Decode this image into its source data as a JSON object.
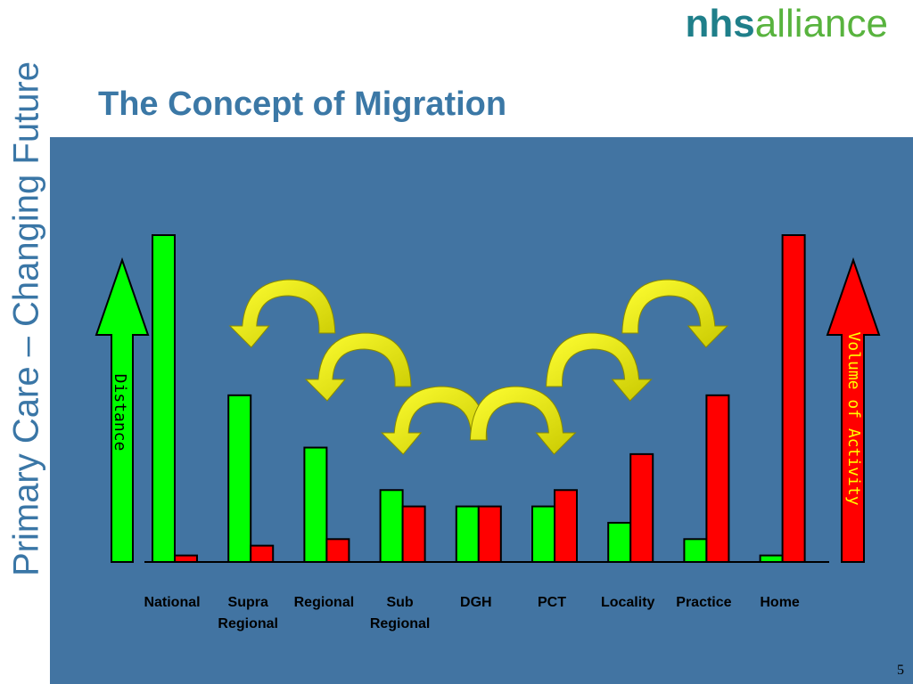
{
  "slide": {
    "title": "The Concept of Migration",
    "side_text": "Primary Care – Changing Future",
    "logo_nhs": "nhs",
    "logo_alliance": "alliance",
    "page_number": "5",
    "colors": {
      "panel": "#4274a2",
      "green": "#00ff00",
      "red": "#ff0000",
      "yellow": "#ffff00",
      "title": "#3b78a6"
    }
  },
  "chart_data": {
    "type": "bar",
    "categories": [
      "National",
      "Supra\nRegional",
      "Regional",
      "Sub\nRegional",
      "DGH",
      "PCT",
      "Locality",
      "Practice",
      "Home"
    ],
    "series": [
      {
        "name": "Distance",
        "color": "#00ff00",
        "values": [
          100,
          51,
          35,
          22,
          17,
          17,
          12,
          7,
          2
        ]
      },
      {
        "name": "Volume of Activity",
        "color": "#ff0000",
        "values": [
          2,
          5,
          7,
          17,
          17,
          22,
          33,
          51,
          100
        ]
      }
    ],
    "ylim": [
      0,
      100
    ],
    "arrow_labels": {
      "left": "Distance",
      "right": "Volume of Activity"
    },
    "migration_arrows": [
      {
        "from": "Regional",
        "to": "Supra Regional"
      },
      {
        "from": "Sub Regional",
        "to": "Regional"
      },
      {
        "from": "DGH",
        "to": "Sub Regional"
      },
      {
        "from": "DGH",
        "to": "PCT"
      },
      {
        "from": "PCT",
        "to": "Locality"
      },
      {
        "from": "Locality",
        "to": "Practice"
      }
    ]
  }
}
